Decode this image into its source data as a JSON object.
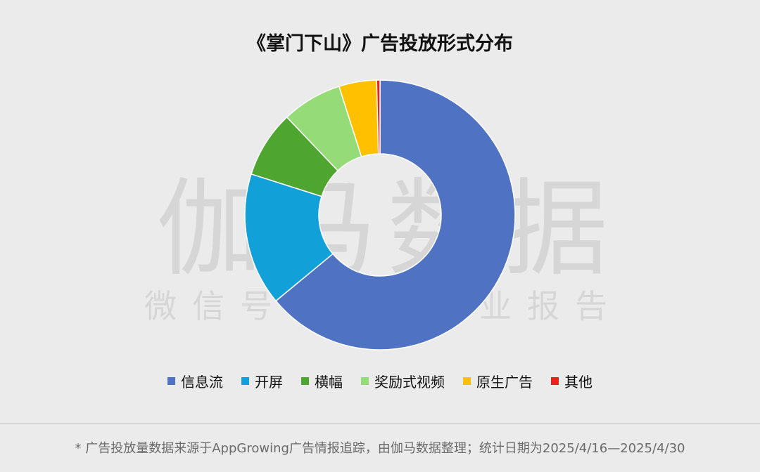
{
  "chart_data": {
    "type": "pie",
    "title": "《掌门下山》广告投放形式分布",
    "legend_position": "bottom",
    "categories": [
      "信息流",
      "开屏",
      "横幅",
      "奖励式视频",
      "原生广告",
      "其他"
    ],
    "values": [
      64.0,
      15.9,
      8.0,
      7.2,
      4.5,
      0.4
    ],
    "colors": [
      "#4f72c2",
      "#12a0d8",
      "#4ea52f",
      "#95dc78",
      "#ffc000",
      "#e8231c"
    ]
  },
  "watermark": {
    "main": "伽马数据",
    "sub": "微信号：游戏产业报告"
  },
  "footnote": "* 广告投放量数据来源于AppGrowing广告情报追踪，由伽马数据整理；统计日期为2025/4/16—2025/4/30"
}
